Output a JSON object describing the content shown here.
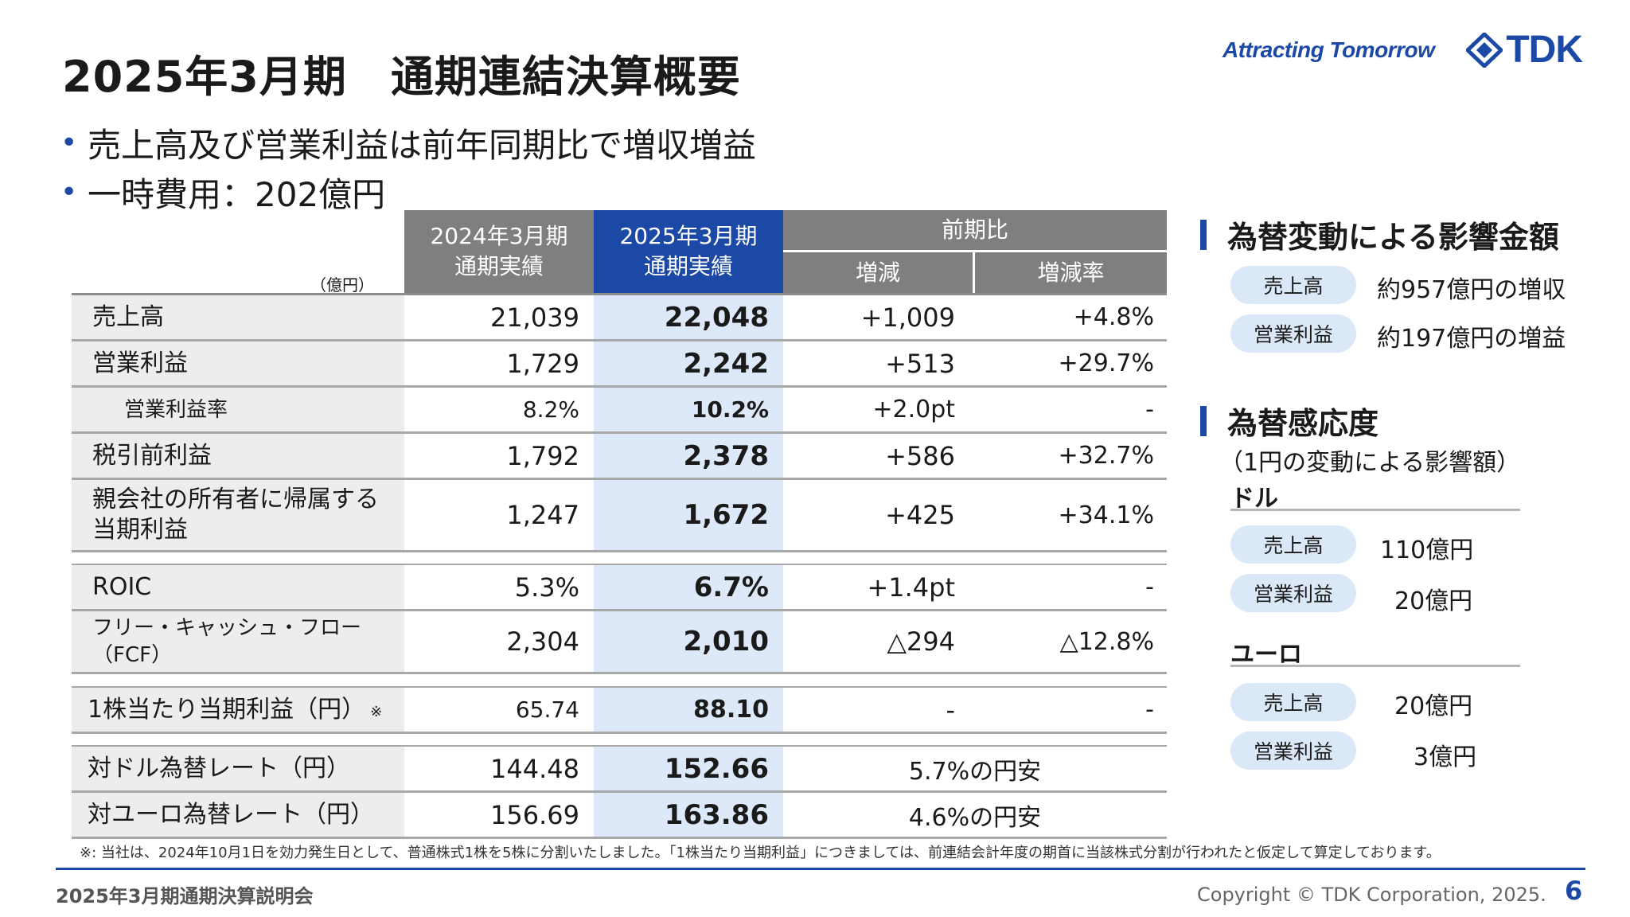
{
  "title": "2025年3月期　通期連結決算概要",
  "brand": {
    "tagline": "Attracting Tomorrow",
    "logo": "TDK",
    "logo_icon": "tdk-diamond-mark"
  },
  "bullets": [
    "売上高及び営業利益は前年同期比で増収増益",
    "一時費用：202億円"
  ],
  "table": {
    "unit": "（億円）",
    "headers": {
      "prev": "2024年3月期\n通期実績",
      "curr": "2025年3月期\n通期実績",
      "yoy": "前期比",
      "diff": "増減",
      "rate": "増減率"
    },
    "rows": [
      {
        "label": "売上高",
        "prev": "21,039",
        "curr": "22,048",
        "diff": "+1,009",
        "rate": "+4.8%"
      },
      {
        "label": "営業利益",
        "prev": "1,729",
        "curr": "2,242",
        "diff": "+513",
        "rate": "+29.7%"
      },
      {
        "label": "営業利益率",
        "prev": "8.2%",
        "curr": "10.2%",
        "diff": "+2.0pt",
        "rate": "-"
      },
      {
        "label": "税引前利益",
        "prev": "1,792",
        "curr": "2,378",
        "diff": "+586",
        "rate": "+32.7%"
      },
      {
        "label": "親会社の所有者に帰属する\n当期利益",
        "prev": "1,247",
        "curr": "1,672",
        "diff": "+425",
        "rate": "+34.1%"
      },
      {
        "label": "ROIC",
        "prev": "5.3%",
        "curr": "6.7%",
        "diff": "+1.4pt",
        "rate": "-"
      },
      {
        "label": "フリー・キャッシュ・フロー\n（FCF）",
        "prev": "2,304",
        "curr": "2,010",
        "diff": "△294",
        "rate": "△12.8%"
      },
      {
        "label": "1株当たり当期利益（円）",
        "note_mark": "※",
        "prev": "65.74",
        "curr": "88.10",
        "diff": "-",
        "rate": "-"
      },
      {
        "label": "対ドル為替レート（円）",
        "prev": "144.48",
        "curr": "152.66",
        "merged": "5.7%の円安"
      },
      {
        "label": "対ユーロ為替レート（円）",
        "prev": "156.69",
        "curr": "163.86",
        "merged": "4.6%の円安"
      }
    ]
  },
  "fx_impact": {
    "heading": "為替変動による影響金額",
    "items": [
      {
        "label": "売上高",
        "value": "約957億円の増収"
      },
      {
        "label": "営業利益",
        "value": "約197億円の増益"
      }
    ]
  },
  "fx_sensitivity": {
    "heading": "為替感応度",
    "caption": "（1円の変動による影響額）",
    "usd": {
      "title": "ドル",
      "items": [
        {
          "label": "売上高",
          "value": "110億円"
        },
        {
          "label": "営業利益",
          "value": "20億円"
        }
      ]
    },
    "eur": {
      "title": "ユーロ",
      "items": [
        {
          "label": "売上高",
          "value": "20億円"
        },
        {
          "label": "営業利益",
          "value": "3億円"
        }
      ]
    }
  },
  "footnote": "※: 当社は、2024年10月1日を効力発生日として、普通株式1株を5株に分割いたしました。「1株当たり当期利益」につきましては、前連結会計年度の期首に当該株式分割が行われたと仮定して算定しております。",
  "footer": {
    "event": "2025年3月期通期決算説明会",
    "copyright": "Copyright © TDK Corporation, 2025.",
    "page": "6"
  },
  "colors": {
    "brand_blue": "#1d49a6",
    "header_gray": "#7f7f7f",
    "current_col": "#dde9f8",
    "label_bg": "#ededed"
  }
}
